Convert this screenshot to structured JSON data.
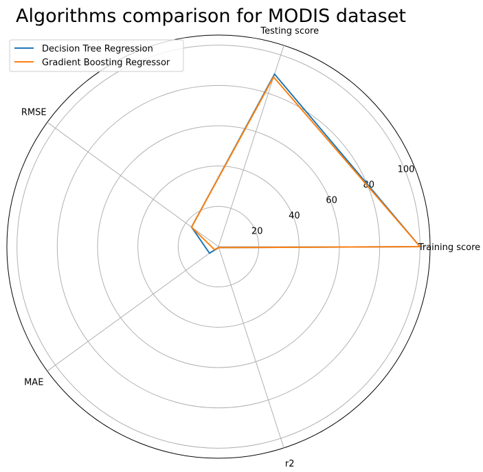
{
  "chart_data": {
    "type": "radar",
    "title": "Algorithms comparison for MODIS dataset",
    "categories": [
      "Training score",
      "Testing score",
      "RMSE",
      "MAE",
      "r2"
    ],
    "radial_ticks": [
      20,
      40,
      60,
      80,
      100
    ],
    "rlim": [
      0,
      105
    ],
    "grid": true,
    "legend_position": "top-left",
    "series": [
      {
        "name": "Decision Tree Regression",
        "color": "#1f77b4",
        "values": [
          100,
          90,
          16.5,
          5.5,
          0.5
        ]
      },
      {
        "name": "Gradient Boosting Regressor",
        "color": "#ff7f0e",
        "values": [
          100,
          88.5,
          16.5,
          2.5,
          0.5
        ]
      }
    ]
  }
}
